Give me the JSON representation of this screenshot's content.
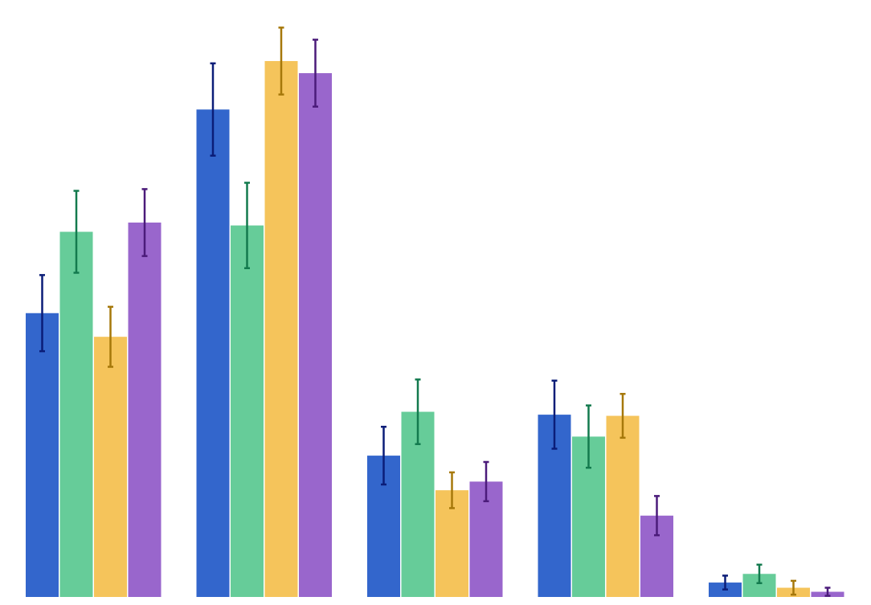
{
  "chart_data": {
    "type": "bar",
    "title": "",
    "xlabel": "",
    "ylabel": "",
    "ylim": [
      0,
      100
    ],
    "grid": false,
    "legend": "none",
    "categories": [
      "",
      "",
      "",
      "",
      ""
    ],
    "series": [
      {
        "color": "#3366CC",
        "error_color": "#0B1D78",
        "values": [
          49.2,
          84.5,
          24.5,
          31.6,
          2.5
        ],
        "errors": [
          6.6,
          8.0,
          5.0,
          5.9,
          1.2
        ]
      },
      {
        "color": "#66CC99",
        "error_color": "#137A4E",
        "values": [
          63.3,
          64.4,
          32.1,
          27.8,
          4.0
        ],
        "errors": [
          7.1,
          7.4,
          5.6,
          5.4,
          1.6
        ]
      },
      {
        "color": "#F5C45B",
        "error_color": "#A6780A",
        "values": [
          45.1,
          92.9,
          18.5,
          31.4,
          1.6
        ],
        "errors": [
          5.2,
          5.8,
          3.1,
          3.8,
          1.2
        ]
      },
      {
        "color": "#9966CC",
        "error_color": "#4B1B7A",
        "values": [
          64.9,
          90.8,
          20.0,
          14.1,
          0.9
        ],
        "errors": [
          5.8,
          5.8,
          3.4,
          3.4,
          0.7
        ]
      }
    ]
  }
}
